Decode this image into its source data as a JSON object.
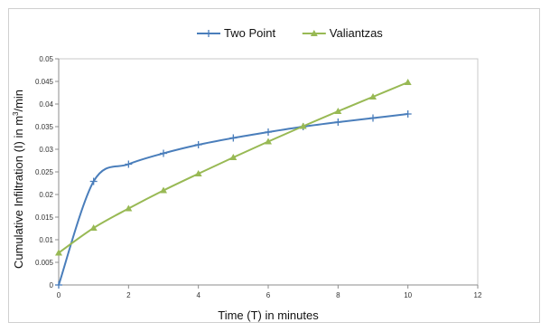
{
  "chart_data": {
    "type": "line",
    "title": "",
    "xlabel": "Time (T) in minutes",
    "ylabel_main": "Cumulative Infiltration (I) in m",
    "ylabel_sup": "3",
    "ylabel_tail": "/min",
    "xlim": [
      0,
      12
    ],
    "ylim": [
      0,
      0.05
    ],
    "x_ticks": [
      "0",
      "2",
      "4",
      "6",
      "8",
      "10",
      "12"
    ],
    "y_ticks": [
      "0",
      "0.005",
      "0.01",
      "0.015",
      "0.02",
      "0.025",
      "0.03",
      "0.035",
      "0.04",
      "0.045",
      "0.05"
    ],
    "legend_position": "top-center",
    "grid": false,
    "series": [
      {
        "name": "Two Point",
        "color": "#4a7ebb",
        "marker": "plus",
        "x": [
          0,
          1,
          2,
          3,
          4,
          5,
          6,
          7,
          8,
          9,
          10
        ],
        "y": [
          0,
          0.0229,
          0.0267,
          0.0291,
          0.031,
          0.0325,
          0.0338,
          0.035,
          0.036,
          0.0369,
          0.0378
        ]
      },
      {
        "name": "Valiantzas",
        "color": "#98b954",
        "marker": "triangle",
        "x": [
          0,
          1,
          2,
          3,
          4,
          5,
          6,
          7,
          8,
          9,
          10
        ],
        "y": [
          0.0071,
          0.0126,
          0.0169,
          0.0209,
          0.0246,
          0.0282,
          0.0317,
          0.0351,
          0.0384,
          0.0416,
          0.0448
        ]
      }
    ]
  }
}
